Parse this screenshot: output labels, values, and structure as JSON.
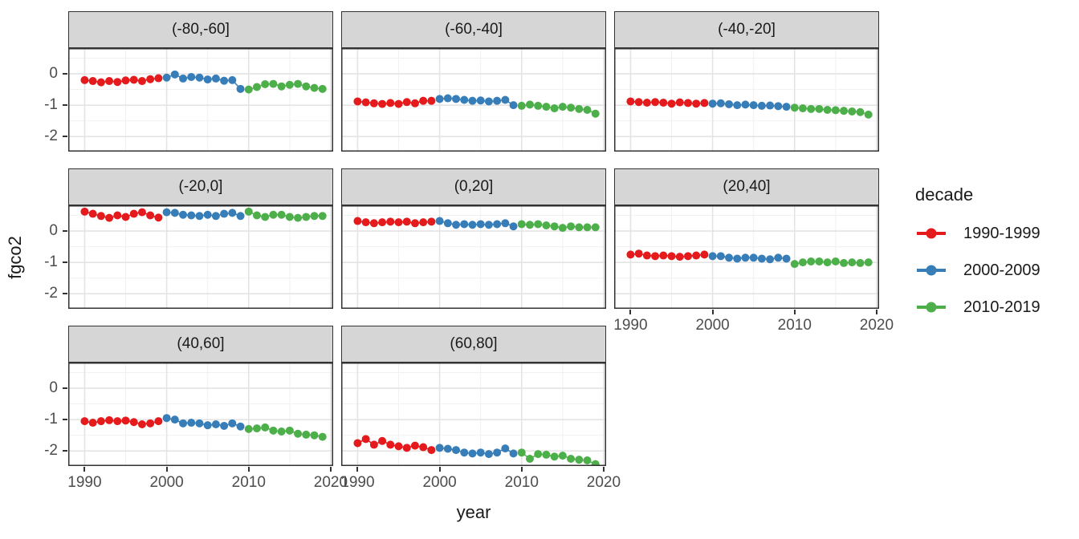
{
  "chart_data": {
    "type": "scatter",
    "title": "",
    "xlabel": "year",
    "ylabel": "fgco2",
    "x_ticks": [
      1990,
      2000,
      2010,
      2020
    ],
    "x_tick_labels": [
      "1990",
      "2000",
      "2010",
      "2020"
    ],
    "y_ticks": [
      0,
      -1,
      -2
    ],
    "y_tick_labels": [
      "0",
      "-1",
      "-2"
    ],
    "x_minor_ticks": [
      1995,
      2005,
      2015
    ],
    "y_minor_ticks": [
      0.5,
      -0.5,
      -1.5
    ],
    "x_range": [
      1988.0,
      2020.3
    ],
    "y_range": [
      0.82,
      -2.48
    ],
    "grid": true,
    "legend": {
      "title": "decade",
      "position": "right",
      "entries": [
        {
          "label": "1990-1999",
          "color": "#e41a1c",
          "years": [
            1990,
            1999
          ]
        },
        {
          "label": "2000-2009",
          "color": "#377eb8",
          "years": [
            2000,
            2009
          ]
        },
        {
          "label": "2010-2019",
          "color": "#4daf4a",
          "years": [
            2010,
            2019
          ]
        }
      ]
    },
    "years": [
      1990,
      1991,
      1992,
      1993,
      1994,
      1995,
      1996,
      1997,
      1998,
      1999,
      2000,
      2001,
      2002,
      2003,
      2004,
      2005,
      2006,
      2007,
      2008,
      2009,
      2010,
      2011,
      2012,
      2013,
      2014,
      2015,
      2016,
      2017,
      2018,
      2019
    ],
    "facets": [
      {
        "label": "(-80,-60]",
        "values": [
          -0.2,
          -0.23,
          -0.27,
          -0.23,
          -0.26,
          -0.21,
          -0.19,
          -0.23,
          -0.17,
          -0.14,
          -0.12,
          -0.02,
          -0.15,
          -0.1,
          -0.12,
          -0.18,
          -0.15,
          -0.22,
          -0.2,
          -0.48,
          -0.5,
          -0.42,
          -0.33,
          -0.32,
          -0.4,
          -0.35,
          -0.32,
          -0.4,
          -0.45,
          -0.48
        ]
      },
      {
        "label": "(-60,-40]",
        "values": [
          -0.88,
          -0.91,
          -0.94,
          -0.96,
          -0.93,
          -0.96,
          -0.9,
          -0.94,
          -0.86,
          -0.86,
          -0.8,
          -0.78,
          -0.8,
          -0.83,
          -0.86,
          -0.85,
          -0.88,
          -0.86,
          -0.83,
          -1.0,
          -1.02,
          -0.98,
          -1.02,
          -1.05,
          -1.1,
          -1.05,
          -1.08,
          -1.12,
          -1.15,
          -1.27
        ]
      },
      {
        "label": "(-40,-20]",
        "values": [
          -0.88,
          -0.9,
          -0.92,
          -0.9,
          -0.92,
          -0.95,
          -0.91,
          -0.93,
          -0.95,
          -0.93,
          -0.95,
          -0.94,
          -0.97,
          -1.0,
          -0.98,
          -1.0,
          -1.02,
          -1.01,
          -1.03,
          -1.05,
          -1.08,
          -1.1,
          -1.12,
          -1.12,
          -1.15,
          -1.16,
          -1.18,
          -1.2,
          -1.22,
          -1.3
        ]
      },
      {
        "label": "(-20,0]",
        "values": [
          0.62,
          0.55,
          0.48,
          0.42,
          0.5,
          0.45,
          0.55,
          0.6,
          0.5,
          0.43,
          0.6,
          0.58,
          0.52,
          0.5,
          0.48,
          0.52,
          0.48,
          0.55,
          0.58,
          0.48,
          0.62,
          0.5,
          0.45,
          0.52,
          0.52,
          0.45,
          0.42,
          0.45,
          0.48,
          0.48
        ]
      },
      {
        "label": "(0,20]",
        "values": [
          0.32,
          0.28,
          0.25,
          0.28,
          0.3,
          0.28,
          0.3,
          0.25,
          0.28,
          0.3,
          0.32,
          0.25,
          0.2,
          0.22,
          0.2,
          0.22,
          0.2,
          0.22,
          0.25,
          0.15,
          0.22,
          0.2,
          0.22,
          0.18,
          0.15,
          0.1,
          0.15,
          0.12,
          0.12,
          0.12
        ]
      },
      {
        "label": "(20,40]",
        "values": [
          -0.75,
          -0.72,
          -0.78,
          -0.8,
          -0.78,
          -0.8,
          -0.82,
          -0.8,
          -0.78,
          -0.75,
          -0.8,
          -0.8,
          -0.85,
          -0.88,
          -0.85,
          -0.85,
          -0.88,
          -0.9,
          -0.85,
          -0.88,
          -1.05,
          -1.0,
          -0.97,
          -0.97,
          -1.0,
          -0.97,
          -1.02,
          -1.0,
          -1.02,
          -1.0
        ]
      },
      {
        "label": "(40,60]",
        "values": [
          -1.05,
          -1.1,
          -1.05,
          -1.02,
          -1.05,
          -1.03,
          -1.08,
          -1.15,
          -1.12,
          -1.05,
          -0.95,
          -1.0,
          -1.12,
          -1.1,
          -1.12,
          -1.18,
          -1.15,
          -1.2,
          -1.12,
          -1.22,
          -1.3,
          -1.28,
          -1.25,
          -1.35,
          -1.38,
          -1.35,
          -1.45,
          -1.48,
          -1.5,
          -1.55
        ]
      },
      {
        "label": "(60,80]",
        "values": [
          -1.75,
          -1.62,
          -1.8,
          -1.68,
          -1.8,
          -1.85,
          -1.9,
          -1.83,
          -1.88,
          -1.97,
          -1.9,
          -1.93,
          -1.97,
          -2.05,
          -2.08,
          -2.05,
          -2.1,
          -2.05,
          -1.92,
          -2.08,
          -2.05,
          -2.25,
          -2.1,
          -2.12,
          -2.18,
          -2.15,
          -2.25,
          -2.28,
          -2.3,
          -2.42
        ]
      }
    ],
    "style": {
      "strip_bg": "#d6d6d6",
      "panel_border": "#333333",
      "grid_major": "#e4e4e4",
      "grid_minor": "#f1f1f1",
      "tick_label_color": "#4d4d4d"
    }
  }
}
